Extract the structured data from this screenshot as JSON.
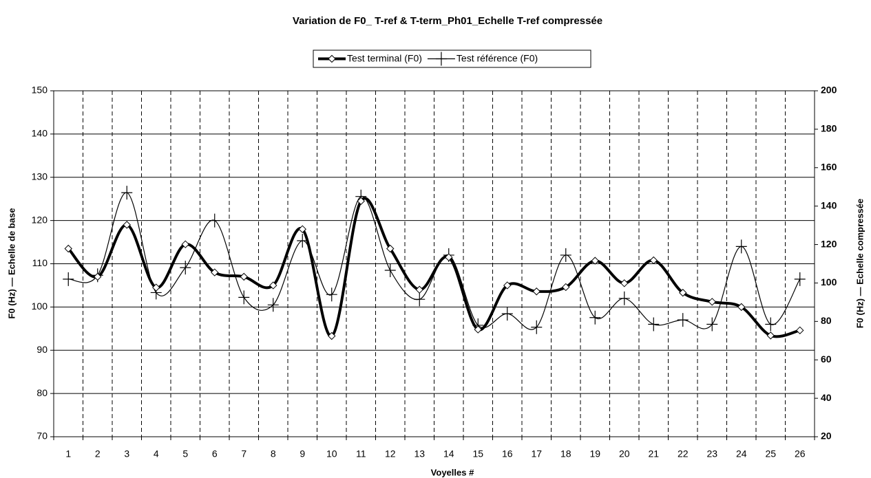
{
  "chart_data": {
    "type": "line",
    "title": "Variation de F0_ T-ref & T-term_Ph01_Echelle T-ref compressée",
    "xlabel": "Voyelles #",
    "ylabel": "F0 (Hz) — Echelle de base",
    "y2label": "F0 (Hz) — Echelle compressée",
    "categories": [
      "1",
      "2",
      "3",
      "4",
      "5",
      "6",
      "7",
      "8",
      "9",
      "10",
      "11",
      "12",
      "13",
      "14",
      "15",
      "16",
      "17",
      "18",
      "19",
      "20",
      "21",
      "22",
      "23",
      "24",
      "25",
      "26"
    ],
    "series": [
      {
        "name": "Test terminal (F0)",
        "color": "#000000",
        "marker": "diamond",
        "axis": "y",
        "values": [
          113.5,
          107,
          119,
          104.5,
          114.5,
          108,
          107,
          105,
          118,
          93.3,
          124.5,
          113.5,
          104,
          111.5,
          94.8,
          105,
          103.6,
          104.6,
          110.7,
          105.5,
          110.8,
          103.3,
          101.2,
          100,
          93.4,
          94.6
        ]
      },
      {
        "name": "Test référence (F0)",
        "color": "#000000",
        "marker": "plus",
        "axis": "y2",
        "values": [
          102,
          104,
          147,
          95,
          108,
          132.5,
          92.5,
          88.6,
          122,
          94,
          145,
          106.6,
          91.5,
          114.5,
          78,
          84,
          77,
          114.5,
          82,
          92,
          78.5,
          80.8,
          78.5,
          119,
          78.5,
          102
        ]
      }
    ],
    "ylim": [
      70,
      150
    ],
    "yticks": [
      70,
      80,
      90,
      100,
      110,
      120,
      130,
      140,
      150
    ],
    "y2lim": [
      20,
      200
    ],
    "y2ticks": [
      20,
      40,
      60,
      80,
      100,
      120,
      140,
      160,
      180,
      200
    ],
    "grid": true,
    "legend": "top"
  }
}
